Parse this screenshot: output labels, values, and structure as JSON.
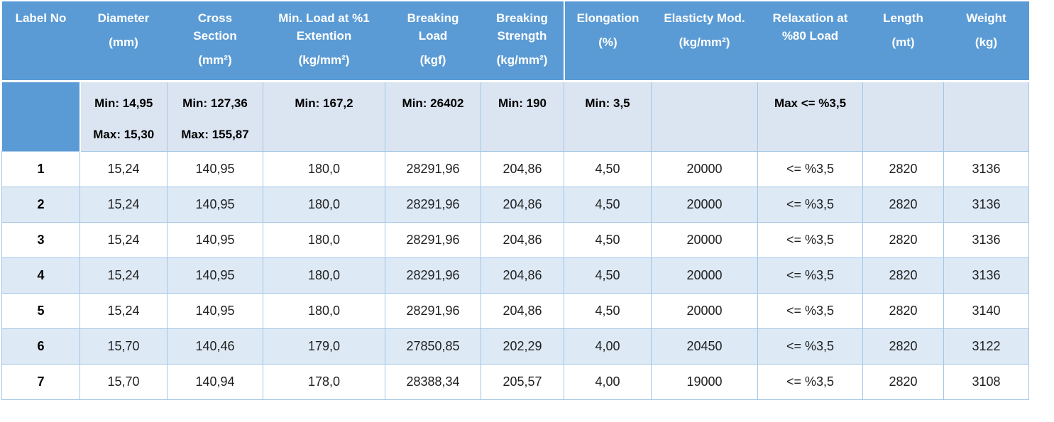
{
  "theme": {
    "header_bg": "#5b9bd5",
    "header_text": "#ffffff",
    "band_bg": "#dde9f5",
    "spec_bg": "#dbe5f1",
    "border": "#a3c7e6",
    "divider": "#ffffff",
    "data_text": "#1f1f1f"
  },
  "table": {
    "columns": [
      {
        "title": "Label No",
        "unit": ""
      },
      {
        "title": "Diameter",
        "unit": "(mm)"
      },
      {
        "title": "Cross\nSection",
        "unit": "(mm²)"
      },
      {
        "title": "Min. Load at %1\nExtention",
        "unit": "(kg/mm²)"
      },
      {
        "title": "Breaking\nLoad",
        "unit": "(kgf)"
      },
      {
        "title": "Breaking\nStrength",
        "unit": "(kg/mm²)"
      },
      {
        "title": "Elongation",
        "unit": "(%)"
      },
      {
        "title": "Elasticty Mod.",
        "unit": "(kg/mm²)"
      },
      {
        "title": "Relaxation at\n%80 Load",
        "unit": ""
      },
      {
        "title": "Length",
        "unit": "(mt)"
      },
      {
        "title": "Weight",
        "unit": "(kg)"
      }
    ],
    "spec": {
      "label": "",
      "diameter": [
        "Min: 14,95",
        "Max: 15,30"
      ],
      "cross_section": [
        "Min: 127,36",
        "Max: 155,87"
      ],
      "min_load": "Min: 167,2",
      "breaking_load": "Min: 26402",
      "breaking_strength": "Min: 190",
      "elongation": "Min: 3,5",
      "elasticity_mod": "",
      "relaxation": "Max <= %3,5",
      "length": "",
      "weight": ""
    },
    "rows": [
      {
        "label": "1",
        "values": [
          "15,24",
          "140,95",
          "180,0",
          "28291,96",
          "204,86",
          "4,50",
          "20000",
          "<= %3,5",
          "2820",
          "3136"
        ]
      },
      {
        "label": "2",
        "values": [
          "15,24",
          "140,95",
          "180,0",
          "28291,96",
          "204,86",
          "4,50",
          "20000",
          "<= %3,5",
          "2820",
          "3136"
        ]
      },
      {
        "label": "3",
        "values": [
          "15,24",
          "140,95",
          "180,0",
          "28291,96",
          "204,86",
          "4,50",
          "20000",
          "<= %3,5",
          "2820",
          "3136"
        ]
      },
      {
        "label": "4",
        "values": [
          "15,24",
          "140,95",
          "180,0",
          "28291,96",
          "204,86",
          "4,50",
          "20000",
          "<= %3,5",
          "2820",
          "3136"
        ]
      },
      {
        "label": "5",
        "values": [
          "15,24",
          "140,95",
          "180,0",
          "28291,96",
          "204,86",
          "4,50",
          "20000",
          "<= %3,5",
          "2820",
          "3140"
        ]
      },
      {
        "label": "6",
        "values": [
          "15,70",
          "140,46",
          "179,0",
          "27850,85",
          "202,29",
          "4,00",
          "20450",
          "<= %3,5",
          "2820",
          "3122"
        ]
      },
      {
        "label": "7",
        "values": [
          "15,70",
          "140,94",
          "178,0",
          "28388,34",
          "205,57",
          "4,00",
          "19000",
          "<= %3,5",
          "2820",
          "3108"
        ]
      }
    ]
  }
}
